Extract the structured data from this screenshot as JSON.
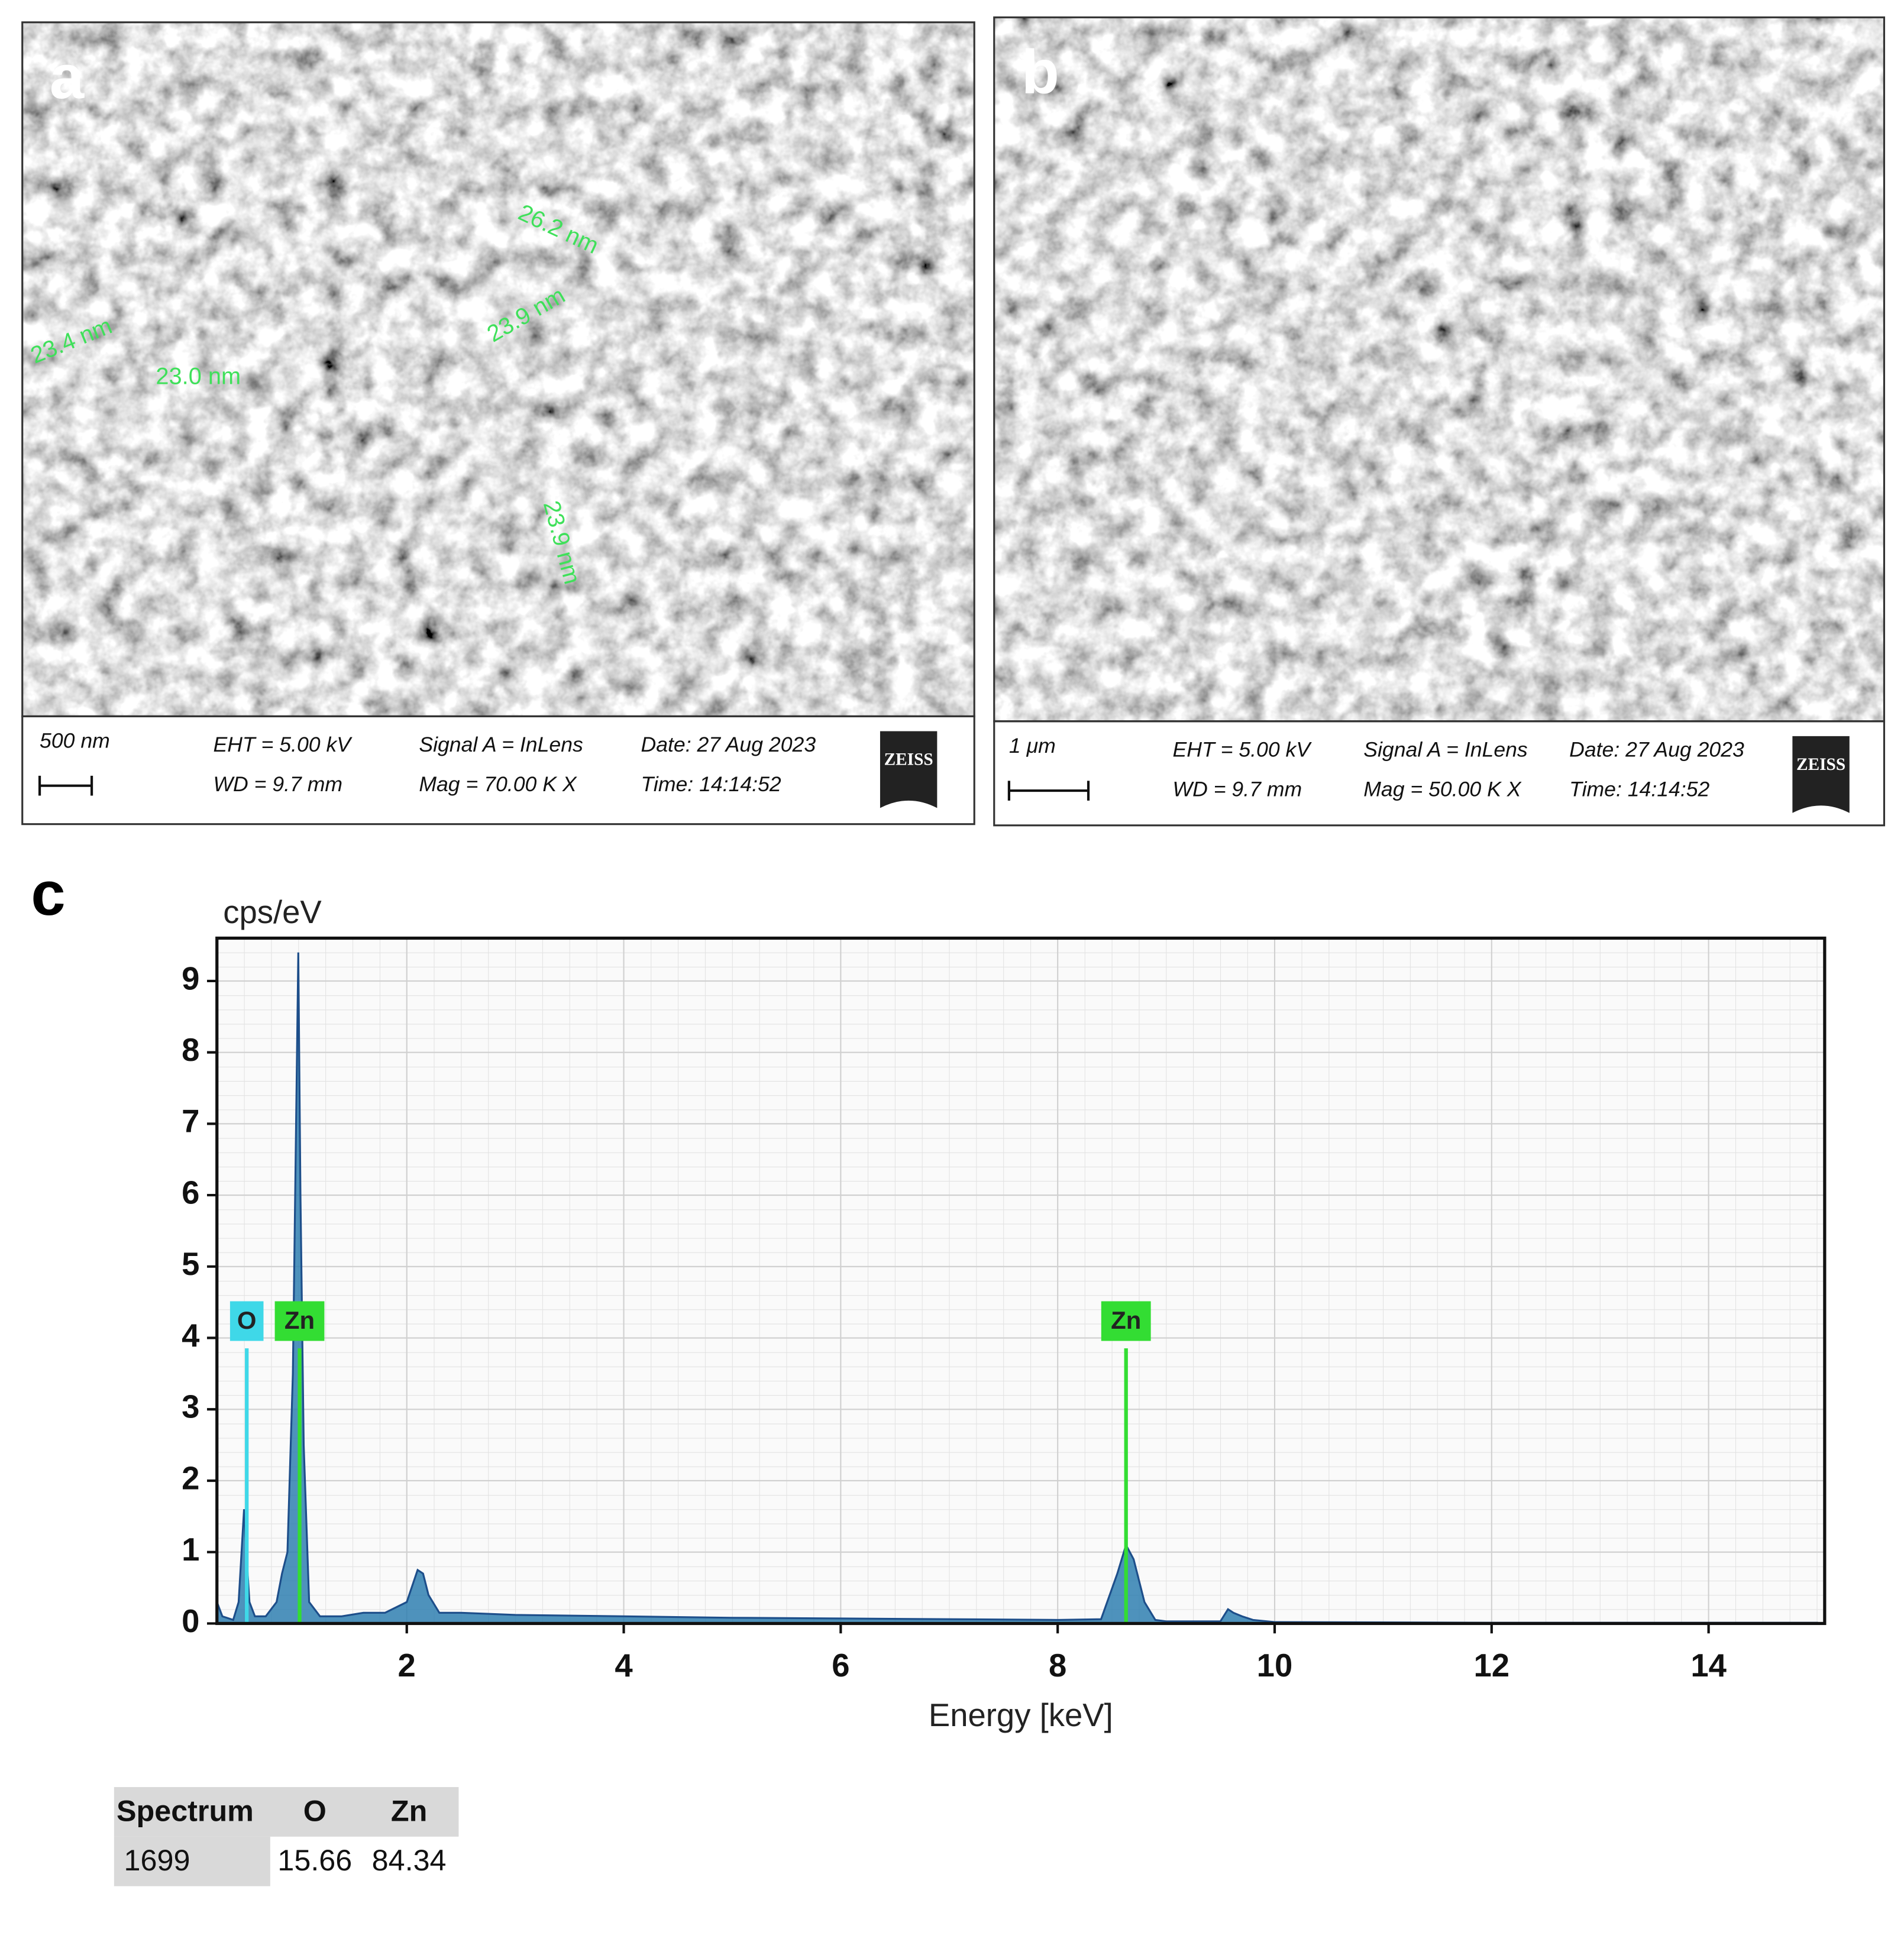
{
  "panels": [
    {
      "label": "a",
      "scale_bar": "500 nm",
      "eht": "EHT = 5.00 kV",
      "wd": "WD = 9.7 mm",
      "signal": "Signal A = InLens",
      "mag": "Mag = 70.00 K X",
      "date": "Date: 27 Aug 2023",
      "time": "Time: 14:14:52",
      "logo": "ZEISS",
      "measurements": [
        "26.2 nm",
        "23.9 nm",
        "23.4 nm",
        "23.0 nm",
        "23.9 nm"
      ]
    },
    {
      "label": "b",
      "scale_bar": "1 μm",
      "eht": "EHT = 5.00 kV",
      "wd": "WD = 9.7 mm",
      "signal": "Signal A = InLens",
      "mag": "Mag = 50.00 K X",
      "date": "Date: 27 Aug 2023",
      "time": "Time: 14:14:52",
      "logo": "ZEISS",
      "measurements": []
    }
  ],
  "chart_data": {
    "type": "area",
    "panel_label": "c",
    "ylabel": "cps/eV",
    "xlabel": "Energy [keV]",
    "color": "#2f7fb0",
    "x": [
      0.25,
      0.3,
      0.4,
      0.45,
      0.5,
      0.525,
      0.55,
      0.6,
      0.7,
      0.8,
      0.85,
      0.9,
      0.95,
      1.0,
      1.02,
      1.05,
      1.1,
      1.2,
      1.4,
      1.6,
      1.8,
      2.0,
      2.1,
      2.15,
      2.2,
      2.3,
      2.5,
      3.0,
      4.0,
      5.0,
      6.0,
      7.0,
      8.0,
      8.4,
      8.55,
      8.63,
      8.7,
      8.8,
      8.9,
      9.0,
      9.5,
      9.57,
      9.62,
      9.7,
      9.8,
      10,
      12,
      15
    ],
    "values": [
      0.3,
      0.1,
      0.05,
      0.3,
      1.6,
      0.9,
      0.3,
      0.1,
      0.1,
      0.3,
      0.7,
      1.0,
      3.5,
      9.4,
      6,
      2.5,
      0.3,
      0.1,
      0.1,
      0.15,
      0.15,
      0.3,
      0.75,
      0.7,
      0.4,
      0.15,
      0.15,
      0.12,
      0.1,
      0.08,
      0.07,
      0.06,
      0.05,
      0.06,
      0.7,
      1.1,
      0.9,
      0.3,
      0.05,
      0.03,
      0.03,
      0.2,
      0.15,
      0.1,
      0.05,
      0.02,
      0.01,
      0.01
    ],
    "xlim": [
      0.25,
      15.07
    ],
    "ylim": [
      0,
      9.6
    ],
    "xticks": [
      2,
      4,
      6,
      8,
      10,
      12,
      14
    ],
    "yticks": [
      0,
      1,
      2,
      3,
      4,
      5,
      6,
      7,
      8,
      9
    ],
    "grid": true,
    "element_lines": [
      {
        "label": "O",
        "x": 0.525,
        "color": "#3fd8e8"
      },
      {
        "label": "Zn",
        "x": 1.012,
        "color": "#33dd33"
      },
      {
        "label": "Zn",
        "x": 8.63,
        "color": "#33dd33"
      }
    ]
  },
  "table": {
    "header": [
      "Spectrum",
      "O",
      "Zn"
    ],
    "rows": [
      [
        "1699",
        "15.66",
        "84.34"
      ]
    ]
  }
}
